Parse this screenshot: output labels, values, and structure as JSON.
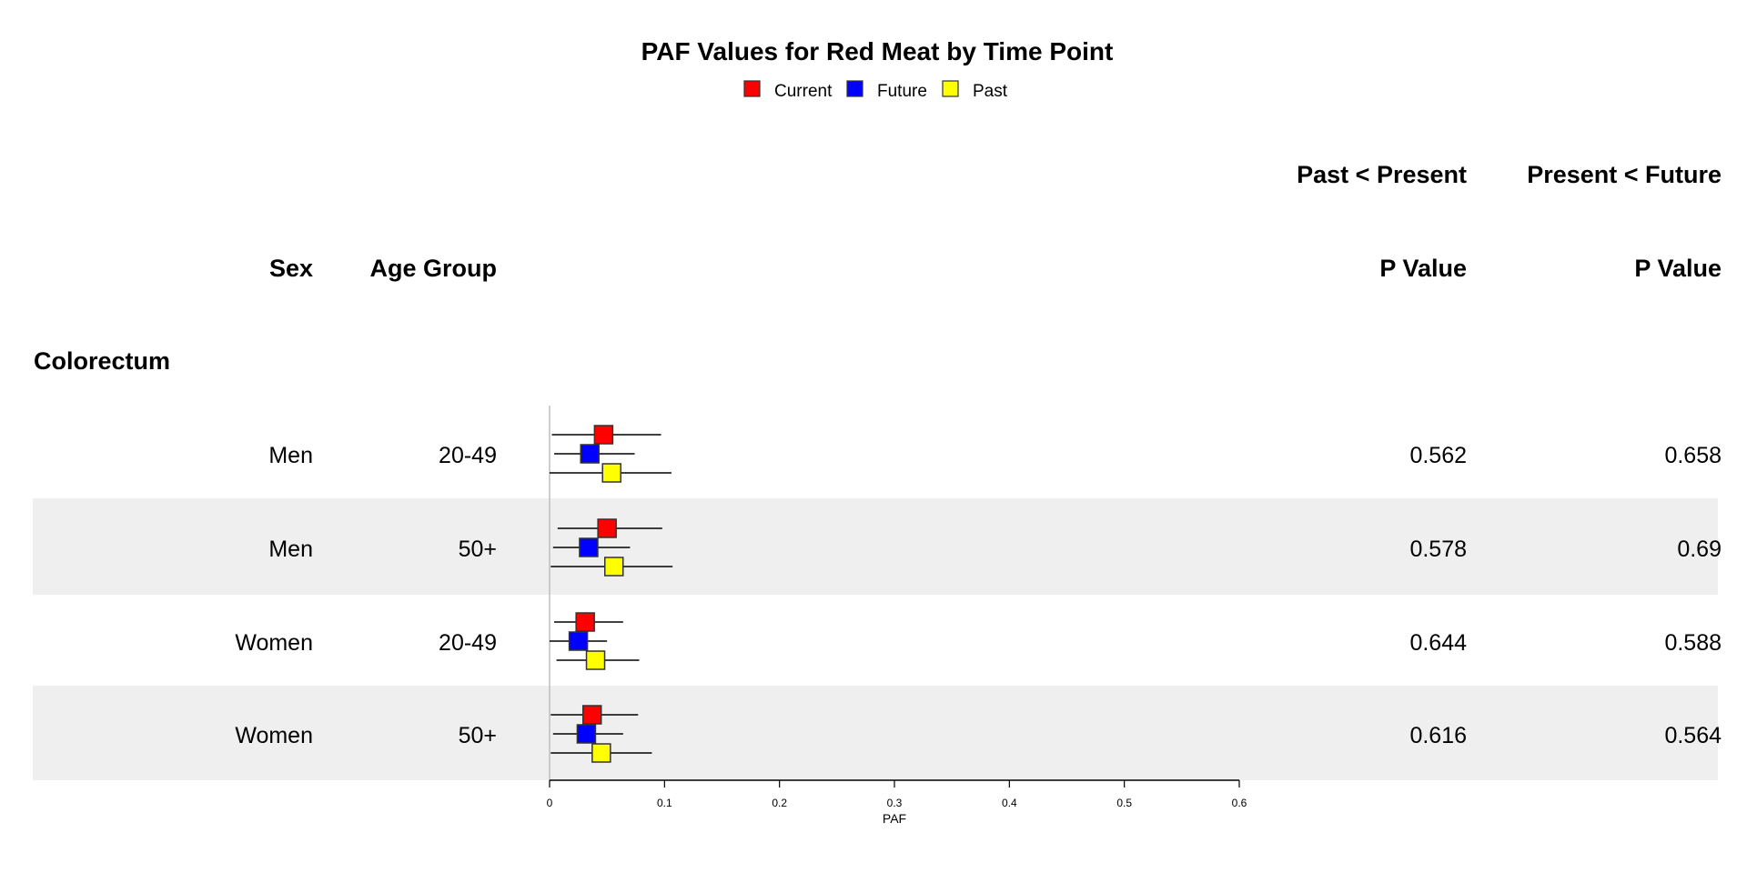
{
  "chart_data": {
    "type": "forest",
    "title": "PAF Values for Red Meat by Time Point",
    "legend": {
      "placement": "top-center",
      "entries": [
        {
          "name": "Current",
          "color": "#ff0000"
        },
        {
          "name": "Future",
          "color": "#0000ff"
        },
        {
          "name": "Past",
          "color": "#ffff00"
        }
      ]
    },
    "header_groups": [
      "Past < Present",
      "Present < Future"
    ],
    "column_headers": {
      "sex": "Sex",
      "age": "Age Group",
      "p1": "P Value",
      "p2": "P Value"
    },
    "section": "Colorectum",
    "xlabel": "PAF",
    "xlim": [
      0,
      0.6
    ],
    "ticks": [
      "0",
      "0.1",
      "0.2",
      "0.3",
      "0.4",
      "0.5",
      "0.6"
    ],
    "row_shading": "#efefef",
    "rows": [
      {
        "sex": "Men",
        "age": "20-49",
        "p1": "0.562",
        "p2": "0.658",
        "estimates": [
          {
            "series": "Current",
            "value": 0.047,
            "lower": 0.002,
            "upper": 0.097
          },
          {
            "series": "Future",
            "value": 0.035,
            "lower": 0.004,
            "upper": 0.074
          },
          {
            "series": "Past",
            "value": 0.054,
            "lower": 0.0,
            "upper": 0.106
          }
        ]
      },
      {
        "sex": "Men",
        "age": "50+",
        "p1": "0.578",
        "p2": "0.69",
        "estimates": [
          {
            "series": "Current",
            "value": 0.05,
            "lower": 0.007,
            "upper": 0.098
          },
          {
            "series": "Future",
            "value": 0.034,
            "lower": 0.003,
            "upper": 0.07
          },
          {
            "series": "Past",
            "value": 0.056,
            "lower": 0.001,
            "upper": 0.107
          }
        ]
      },
      {
        "sex": "Women",
        "age": "20-49",
        "p1": "0.644",
        "p2": "0.588",
        "estimates": [
          {
            "series": "Current",
            "value": 0.031,
            "lower": 0.004,
            "upper": 0.064
          },
          {
            "series": "Future",
            "value": 0.025,
            "lower": 0.0,
            "upper": 0.05
          },
          {
            "series": "Past",
            "value": 0.04,
            "lower": 0.006,
            "upper": 0.078
          }
        ]
      },
      {
        "sex": "Women",
        "age": "50+",
        "p1": "0.616",
        "p2": "0.564",
        "estimates": [
          {
            "series": "Current",
            "value": 0.037,
            "lower": 0.001,
            "upper": 0.077
          },
          {
            "series": "Future",
            "value": 0.032,
            "lower": 0.003,
            "upper": 0.064
          },
          {
            "series": "Past",
            "value": 0.045,
            "lower": 0.001,
            "upper": 0.089
          }
        ]
      }
    ]
  }
}
